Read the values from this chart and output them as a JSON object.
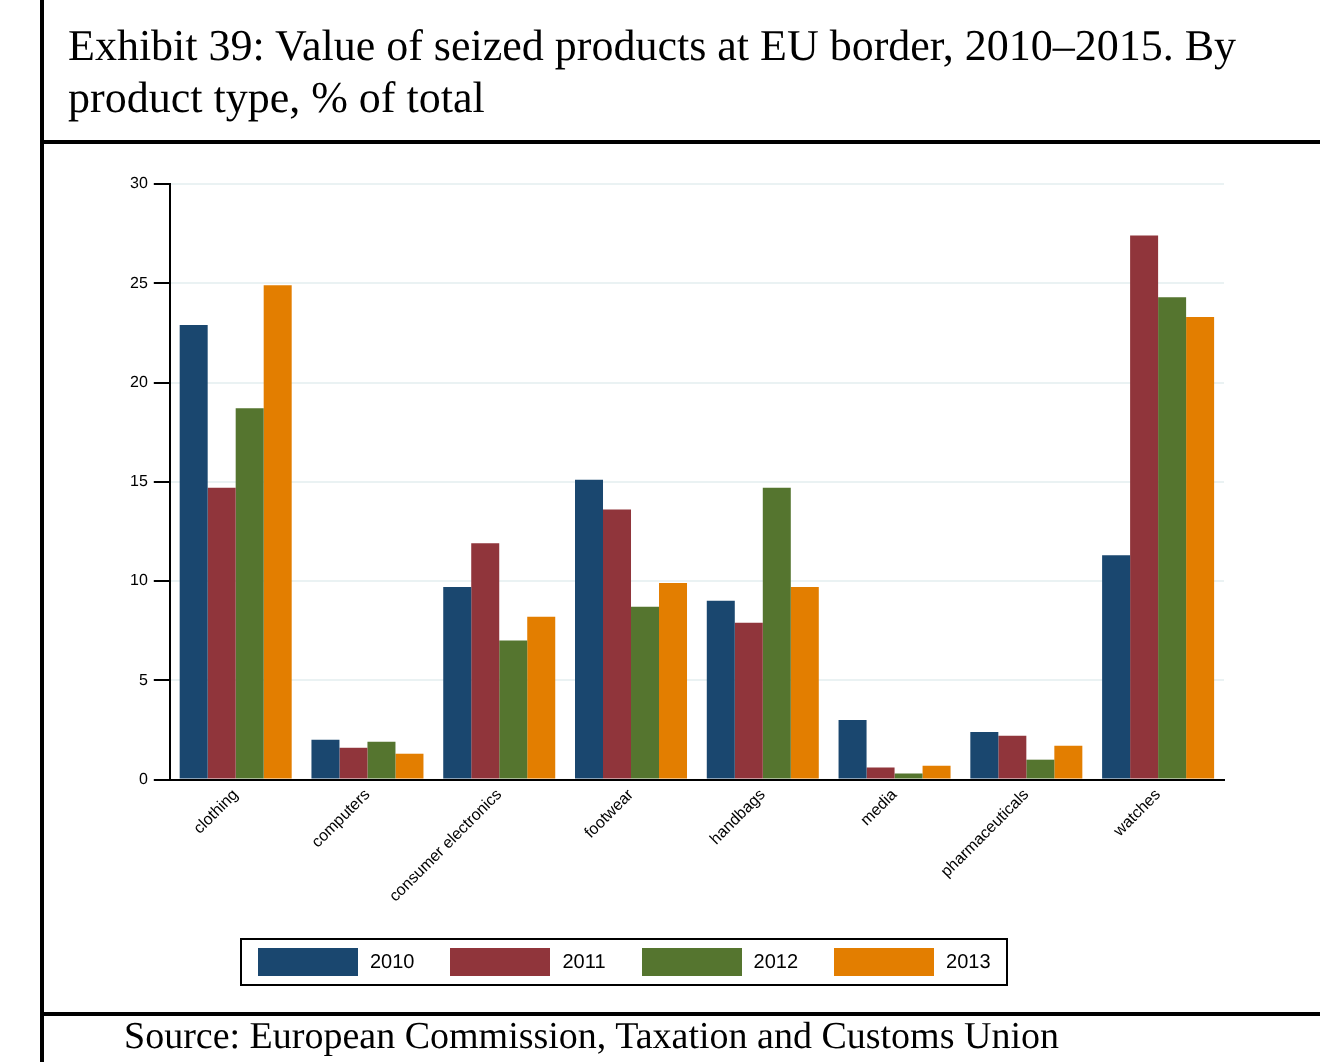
{
  "chart_data": {
    "type": "bar",
    "title": "Exhibit 39: Value of seized products at EU border, 2010–2015.  By product type, % of total",
    "categories": [
      "clothing",
      "computers",
      "consumer electronics",
      "footwear",
      "handbags",
      "media",
      "pharmaceuticals",
      "watches"
    ],
    "series": [
      {
        "name": "2010",
        "color": "#1a476f",
        "values": [
          22.9,
          2.0,
          9.7,
          15.1,
          9.0,
          3.0,
          2.4,
          11.3
        ]
      },
      {
        "name": "2011",
        "color": "#90353b",
        "values": [
          14.7,
          1.6,
          11.9,
          13.6,
          7.9,
          0.6,
          2.2,
          27.4
        ]
      },
      {
        "name": "2012",
        "color": "#55752f",
        "values": [
          18.7,
          1.9,
          7.0,
          8.7,
          14.7,
          0.3,
          1.0,
          24.3
        ]
      },
      {
        "name": "2013",
        "color": "#e37e00",
        "values": [
          24.9,
          1.3,
          8.2,
          9.9,
          9.7,
          0.7,
          1.7,
          23.3
        ]
      }
    ],
    "ylim": [
      0,
      30
    ],
    "yticks": [
      0,
      5,
      10,
      15,
      20,
      25,
      30
    ],
    "grid": "y",
    "legend": "bottom",
    "annotations": [
      "Source: European Commission, Taxation and Customs Union"
    ]
  }
}
